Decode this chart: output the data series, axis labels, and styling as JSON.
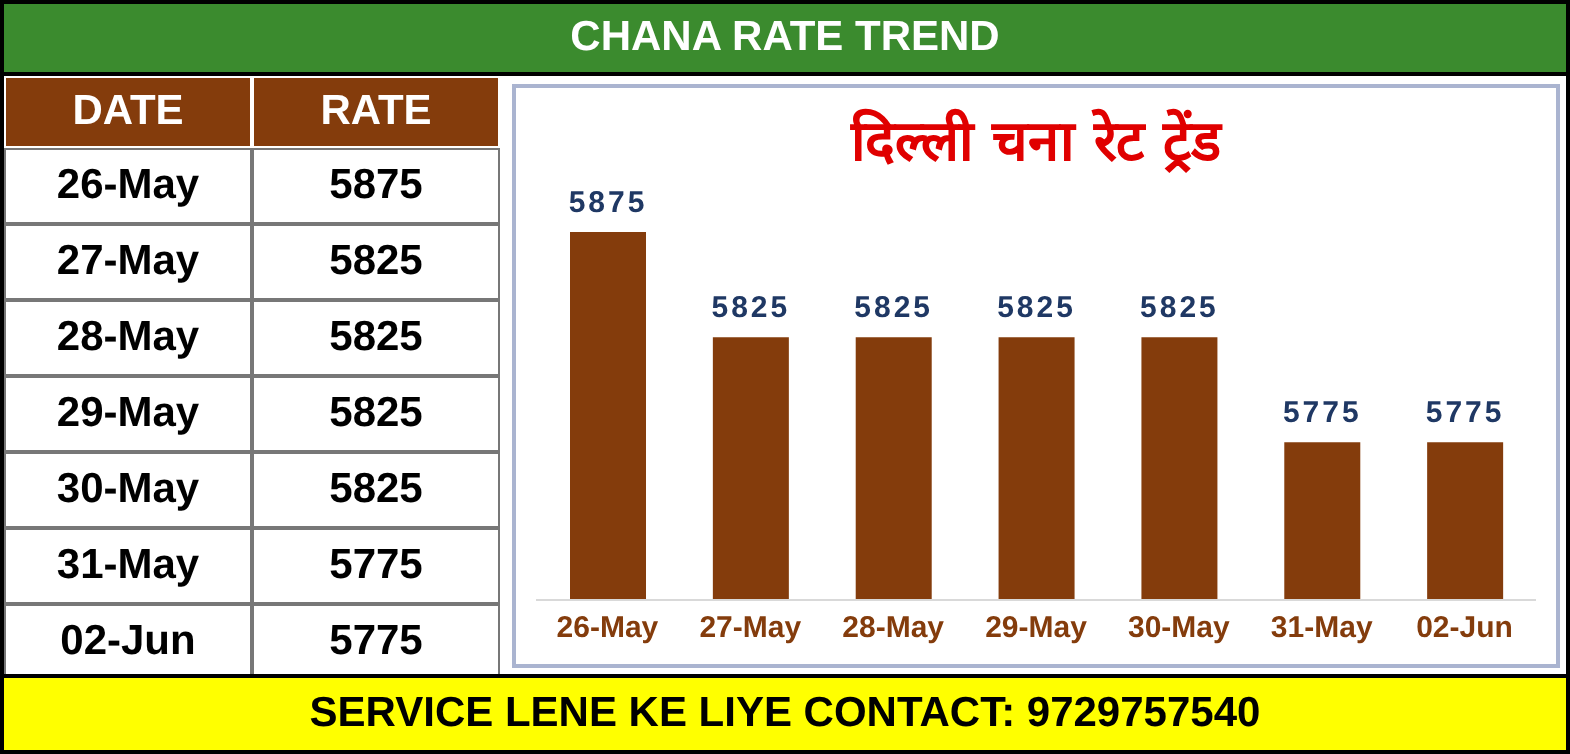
{
  "chart_data": [
    {
      "type": "other",
      "xlabel": "DATE",
      "ylabel": "RATE",
      "categories": [
        "26-May",
        "27-May",
        "28-May",
        "29-May",
        "30-May",
        "31-May",
        "02-Jun"
      ],
      "values": [
        5875,
        5825,
        5825,
        5825,
        5825,
        5775,
        5775
      ],
      "value_labels": [
        "5875",
        "5825",
        "5825",
        "5825",
        "5825",
        "5775",
        "5775"
      ]
    },
    {
      "type": "bar",
      "title": "दिल्ली चना रेट ट्रेंड",
      "subtitle": "CHANA RATE TREND",
      "categories": [
        "26-May",
        "27-May",
        "28-May",
        "29-May",
        "30-May",
        "31-May",
        "02-Jun"
      ],
      "values": [
        5875,
        5825,
        5825,
        5825,
        5825,
        5775,
        5775
      ],
      "color": "#843c0c",
      "ylim": [
        5700,
        5875
      ],
      "data_labels": true,
      "annotations": [
        "SERVICE LENE KE LIYE CONTACT: 9729757540"
      ]
    }
  ]
}
